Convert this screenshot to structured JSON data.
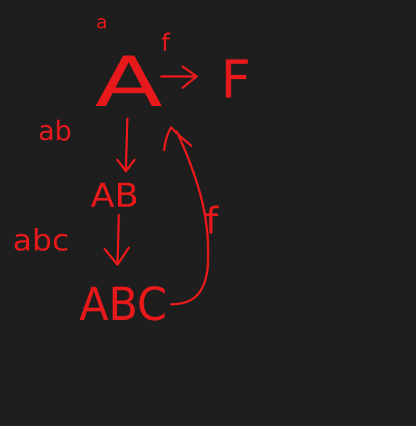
{
  "colors": {
    "background": "#1e1e1e",
    "ink": "#e8191b"
  },
  "diagram": {
    "nodes": {
      "a_state": "A",
      "f_state": "F",
      "ab_state": "AB",
      "abc_state": "ABC"
    },
    "edge_labels": {
      "initial": "a",
      "a_to_f": "f",
      "a_to_ab": "ab",
      "ab_to_abc": "abc",
      "abc_to_a": "f"
    }
  }
}
